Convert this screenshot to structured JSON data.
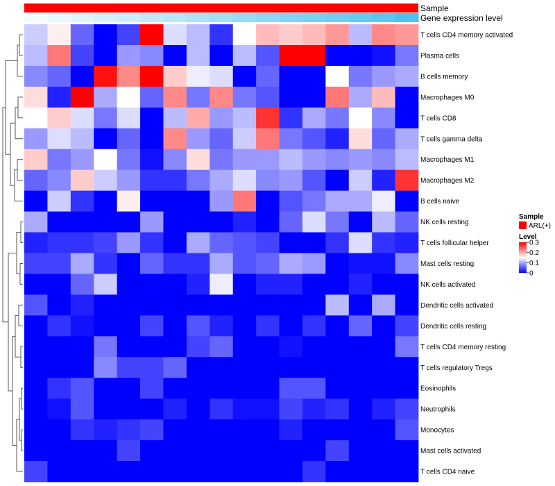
{
  "chart_data": {
    "type": "heatmap",
    "annotations": {
      "sample_label": "Sample",
      "expression_label": "Gene expression level"
    },
    "rows": [
      "T cells CD4 memory activated",
      "Plasma cells",
      "B cells memory",
      "Macrophages M0",
      "T cells CD8",
      "T cells gamma delta",
      "Macrophages M1",
      "Macrophages M2",
      "B cells naive",
      "NK cells resting",
      "T cells follicular helper",
      "Mast cells resting",
      "NK cells activated",
      "Dendritic cells activated",
      "Dendritic cells resting",
      "T cells CD4 memory resting",
      "T cells regulatory  Tregs",
      "Eosinophils",
      "Neutrophils",
      "Monocytes",
      "Mast cells activated",
      "T cells CD4 naive"
    ],
    "n_columns": 17,
    "values": [
      [
        0.12,
        0.16,
        0.06,
        0.0,
        0.04,
        0.3,
        0.13,
        0.11,
        0.03,
        0.15,
        0.19,
        0.18,
        0.19,
        0.21,
        0.11,
        0.22,
        0.21
      ],
      [
        0.11,
        0.23,
        0.04,
        0.0,
        0.09,
        0.08,
        0.0,
        0.11,
        0.0,
        0.11,
        0.05,
        0.3,
        0.3,
        0.0,
        0.0,
        0.01,
        0.07
      ],
      [
        0.08,
        0.06,
        0.0,
        0.29,
        0.22,
        0.3,
        0.18,
        0.14,
        0.13,
        0.0,
        0.06,
        0.0,
        0.0,
        0.15,
        0.07,
        0.09,
        0.1
      ],
      [
        0.17,
        0.02,
        0.3,
        0.1,
        0.15,
        0.06,
        0.22,
        0.07,
        0.22,
        0.07,
        0.05,
        0.0,
        0.0,
        0.23,
        0.1,
        0.19,
        0.0
      ],
      [
        0.15,
        0.18,
        0.13,
        0.07,
        0.13,
        0.0,
        0.11,
        0.2,
        0.09,
        0.11,
        0.27,
        0.03,
        0.1,
        0.07,
        0.15,
        0.08,
        0.0
      ],
      [
        0.09,
        0.13,
        0.11,
        0.0,
        0.06,
        0.0,
        0.22,
        0.09,
        0.06,
        0.12,
        0.23,
        0.07,
        0.05,
        0.02,
        0.17,
        0.06,
        0.1
      ],
      [
        0.18,
        0.07,
        0.09,
        0.15,
        0.07,
        0.01,
        0.08,
        0.17,
        0.07,
        0.09,
        0.09,
        0.11,
        0.09,
        0.08,
        0.09,
        0.08,
        0.11
      ],
      [
        0.06,
        0.08,
        0.18,
        0.12,
        0.09,
        0.03,
        0.03,
        0.07,
        0.1,
        0.13,
        0.08,
        0.09,
        0.05,
        0.0,
        0.12,
        0.02,
        0.27
      ],
      [
        0.0,
        0.12,
        0.03,
        0.0,
        0.16,
        0.0,
        0.0,
        0.0,
        0.09,
        0.23,
        0.0,
        0.05,
        0.07,
        0.1,
        0.1,
        0.14,
        0.0
      ],
      [
        0.1,
        0.0,
        0.0,
        0.0,
        0.0,
        0.09,
        0.0,
        0.0,
        0.0,
        0.02,
        0.0,
        0.06,
        0.13,
        0.07,
        0.0,
        0.11,
        0.06
      ],
      [
        0.02,
        0.03,
        0.03,
        0.04,
        0.09,
        0.03,
        0.0,
        0.1,
        0.06,
        0.05,
        0.04,
        0.0,
        0.0,
        0.03,
        0.13,
        0.03,
        0.02
      ],
      [
        0.04,
        0.04,
        0.1,
        0.03,
        0.0,
        0.06,
        0.03,
        0.03,
        0.1,
        0.05,
        0.06,
        0.1,
        0.09,
        0.0,
        0.01,
        0.01,
        0.08
      ],
      [
        0.0,
        0.0,
        0.06,
        0.12,
        0.0,
        0.0,
        0.0,
        0.02,
        0.14,
        0.0,
        0.02,
        0.02,
        0.0,
        0.0,
        0.02,
        0.0,
        0.0
      ],
      [
        0.05,
        0.0,
        0.02,
        0.0,
        0.0,
        0.0,
        0.0,
        0.0,
        0.0,
        0.0,
        0.0,
        0.0,
        0.0,
        0.11,
        0.0,
        0.1,
        0.0
      ],
      [
        0.0,
        0.03,
        0.01,
        0.0,
        0.0,
        0.04,
        0.0,
        0.05,
        0.02,
        0.0,
        0.03,
        0.0,
        0.03,
        0.0,
        0.06,
        0.0,
        0.04
      ],
      [
        0.0,
        0.0,
        0.0,
        0.07,
        0.0,
        0.0,
        0.0,
        0.04,
        0.06,
        0.0,
        0.0,
        0.01,
        0.0,
        0.0,
        0.0,
        0.0,
        0.07
      ],
      [
        0.0,
        0.0,
        0.0,
        0.08,
        0.04,
        0.04,
        0.06,
        0.0,
        0.0,
        0.0,
        0.0,
        0.0,
        0.0,
        0.0,
        0.0,
        0.0,
        0.0
      ],
      [
        0.0,
        0.03,
        0.05,
        0.0,
        0.0,
        0.04,
        0.0,
        0.0,
        0.0,
        0.0,
        0.0,
        0.05,
        0.05,
        0.0,
        0.0,
        0.0,
        0.0
      ],
      [
        0.0,
        0.01,
        0.05,
        0.0,
        0.0,
        0.0,
        0.02,
        0.0,
        0.03,
        0.01,
        0.01,
        0.04,
        0.02,
        0.03,
        0.0,
        0.02,
        0.04
      ],
      [
        0.0,
        0.0,
        0.03,
        0.02,
        0.03,
        0.04,
        0.0,
        0.0,
        0.0,
        0.0,
        0.0,
        0.02,
        0.0,
        0.0,
        0.0,
        0.0,
        0.05
      ],
      [
        0.0,
        0.0,
        0.0,
        0.0,
        0.04,
        0.0,
        0.0,
        0.0,
        0.0,
        0.0,
        0.0,
        0.0,
        0.0,
        0.04,
        0.0,
        0.0,
        0.0
      ],
      [
        0.04,
        0.0,
        0.0,
        0.0,
        0.0,
        0.0,
        0.0,
        0.0,
        0.0,
        0.0,
        0.0,
        0.0,
        0.03,
        0.0,
        0.0,
        0.0,
        0.0
      ]
    ],
    "expression_annotation": [
      0.0,
      0.06,
      0.12,
      0.18,
      0.24,
      0.3,
      0.36,
      0.42,
      0.48,
      0.55,
      0.61,
      0.67,
      0.73,
      0.79,
      0.85,
      0.91,
      1.0
    ],
    "color_scale": {
      "low": "#0000ff",
      "mid": "#ffffff",
      "high": "#ff0000",
      "min": 0,
      "mid_value": 0.15,
      "max": 0.3
    },
    "legend": {
      "sample_title": "Sample",
      "sample_item": "ARL(+)",
      "sample_color": "#ff0000",
      "level_title": "Level",
      "level_ticks": [
        "0.3",
        "0.2",
        "0.1",
        "0"
      ],
      "level_tick_values": [
        0.3,
        0.2,
        0.1,
        0
      ],
      "placement": "right"
    },
    "expression_colors": {
      "low": "#f4fbfd",
      "high": "#4fc0ef"
    },
    "dendrogram": true
  }
}
